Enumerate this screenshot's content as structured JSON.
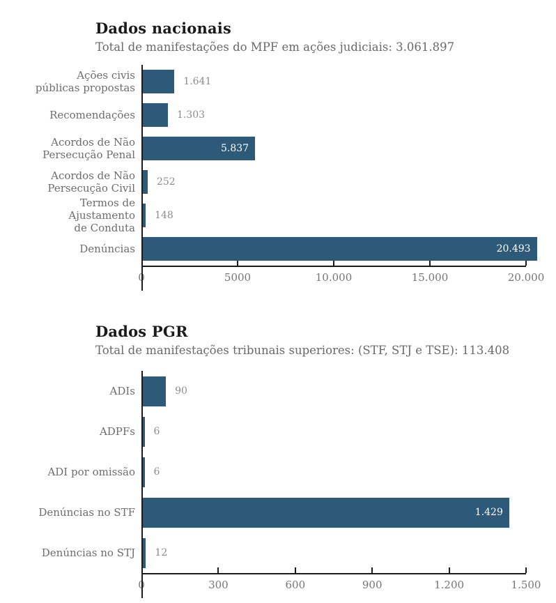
{
  "chart_data": [
    {
      "type": "bar",
      "orientation": "horizontal",
      "title": "Dados nacionais",
      "subtitle": "Total de manifestações do MPF em ações judiciais: 3.061.897",
      "categories": [
        "Ações civis\npúblicas propostas",
        "Recomendações",
        "Acordos de Não\nPersecução Penal",
        "Acordos de Não\nPersecução Civil",
        "Termos de Ajustamento\nde Conduta",
        "Denúncias"
      ],
      "values": [
        1641,
        1303,
        5837,
        252,
        148,
        20493
      ],
      "value_labels": [
        "1.641",
        "1.303",
        "5.837",
        "252",
        "148",
        "20.493"
      ],
      "value_label_positions": [
        "outside",
        "outside",
        "inside",
        "outside",
        "outside",
        "inside"
      ],
      "axis_max": 20000,
      "xlim": [
        0,
        20000
      ],
      "xticks": [
        {
          "value": 0,
          "label": "0"
        },
        {
          "value": 5000,
          "label": "5000"
        },
        {
          "value": 10000,
          "label": "10.000"
        },
        {
          "value": 15000,
          "label": "15.000"
        },
        {
          "value": 20000,
          "label": "20.000"
        }
      ],
      "bar_color": "#2d5a78",
      "grid": false,
      "legend": false
    },
    {
      "type": "bar",
      "orientation": "horizontal",
      "title": "Dados PGR",
      "subtitle": "Total de manifestações tribunais superiores: (STF, STJ e TSE): 113.408",
      "categories": [
        "ADIs",
        "ADPFs",
        "ADI por omissão",
        "Denúncias no STF",
        "Denúncias no STJ"
      ],
      "values": [
        90,
        6,
        6,
        1429,
        12
      ],
      "value_labels": [
        "90",
        "6",
        "6",
        "1.429",
        "12"
      ],
      "value_label_positions": [
        "outside",
        "outside",
        "outside",
        "inside",
        "outside"
      ],
      "axis_max": 1500,
      "xlim": [
        0,
        1500
      ],
      "xticks": [
        {
          "value": 0,
          "label": "0"
        },
        {
          "value": 300,
          "label": "300"
        },
        {
          "value": 600,
          "label": "600"
        },
        {
          "value": 900,
          "label": "900"
        },
        {
          "value": 1200,
          "label": "1.200"
        },
        {
          "value": 1500,
          "label": "1.500"
        }
      ],
      "bar_color": "#2d5a78",
      "grid": false,
      "legend": false
    }
  ],
  "colors": {
    "bar": "#2d5a78",
    "axis": "#1b1b1b",
    "title_text": "#1b1b1b",
    "subtitle_text": "#696969",
    "label_text": "#6d6d6d",
    "value_text": "#8c8c8c",
    "value_text_inside": "#ffffff",
    "background": "#ffffff"
  }
}
